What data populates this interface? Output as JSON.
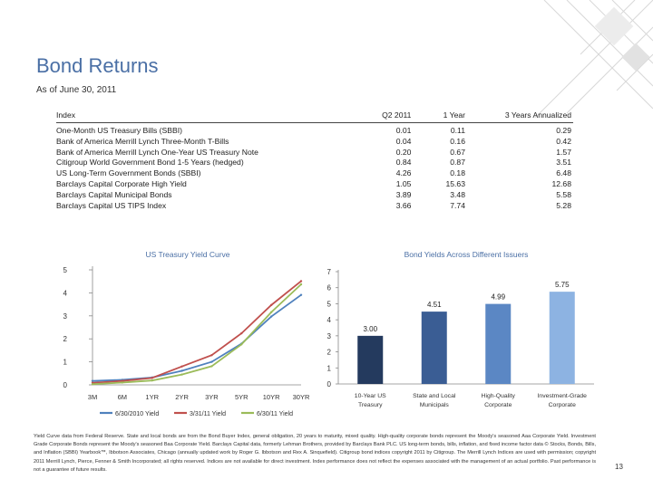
{
  "header": {
    "title": "Bond Returns",
    "subtitle": "As of June 30, 2011"
  },
  "returns_table": {
    "columns": [
      "Index",
      "Q2 2011",
      "1 Year",
      "3 Years Annualized"
    ],
    "rows": [
      {
        "index": "One-Month US Treasury Bills (SBBI)",
        "q2": "0.01",
        "y1": "0.11",
        "y3": "0.29"
      },
      {
        "index": "Bank of America Merrill Lynch Three-Month T-Bills",
        "q2": "0.04",
        "y1": "0.16",
        "y3": "0.42"
      },
      {
        "index": "Bank of America Merrill Lynch One-Year US Treasury Note",
        "q2": "0.20",
        "y1": "0.67",
        "y3": "1.57"
      },
      {
        "index": "Citigroup World Government Bond 1-5 Years (hedged)",
        "q2": "0.84",
        "y1": "0.87",
        "y3": "3.51"
      },
      {
        "index": "US Long-Term Government Bonds (SBBI)",
        "q2": "4.26",
        "y1": "0.18",
        "y3": "6.48"
      },
      {
        "index": "Barclays Capital Corporate High Yield",
        "q2": "1.05",
        "y1": "15.63",
        "y3": "12.68"
      },
      {
        "index": "Barclays Capital Municipal Bonds",
        "q2": "3.89",
        "y1": "3.48",
        "y3": "5.58"
      },
      {
        "index": "Barclays Capital US TIPS Index",
        "q2": "3.66",
        "y1": "7.74",
        "y3": "5.28"
      }
    ]
  },
  "chart_data": [
    {
      "type": "line",
      "title": "US Treasury Yield Curve",
      "categories": [
        "3M",
        "6M",
        "1YR",
        "2YR",
        "3YR",
        "5YR",
        "10YR",
        "30YR"
      ],
      "ylim": [
        0,
        5
      ],
      "yticks": [
        "0",
        "1",
        "2",
        "3",
        "4",
        "5"
      ],
      "series": [
        {
          "name": "6/30/2010 Yield",
          "color": "#4f81bd",
          "values": [
            0.17,
            0.22,
            0.32,
            0.61,
            1.0,
            1.79,
            2.97,
            3.91
          ]
        },
        {
          "name": "3/31/11 Yield",
          "color": "#c0504d",
          "values": [
            0.09,
            0.17,
            0.3,
            0.8,
            1.29,
            2.24,
            3.47,
            4.51
          ]
        },
        {
          "name": "6/30/11 Yield",
          "color": "#9bbb59",
          "values": [
            0.03,
            0.1,
            0.19,
            0.45,
            0.81,
            1.76,
            3.16,
            4.37
          ]
        }
      ]
    },
    {
      "type": "bar",
      "title": "Bond Yields Across Different Issuers",
      "categories": [
        "10-Year US Treasury",
        "State and Local Municipals",
        "High-Quality Corporate",
        "Investment-Grade Corporate"
      ],
      "category_lines": [
        [
          "10-Year US",
          "Treasury"
        ],
        [
          "State and Local",
          "Municipals"
        ],
        [
          "High-Quality",
          "Corporate"
        ],
        [
          "Investment-Grade",
          "Corporate"
        ]
      ],
      "values": [
        3.0,
        4.51,
        4.99,
        5.75
      ],
      "value_labels": [
        "3.00",
        "4.51",
        "4.99",
        "5.75"
      ],
      "colors": [
        "#243a5e",
        "#3a5d94",
        "#5b87c4",
        "#8db3e2"
      ],
      "ylim": [
        0,
        7
      ],
      "yticks": [
        "0",
        "1",
        "2",
        "3",
        "4",
        "5",
        "6",
        "7"
      ]
    }
  ],
  "footnote": "Yield Curve data from Federal Reserve. State and local bonds are from the Bond Buyer Index, general obligation, 20 years to maturity, mixed quality. High-quality corporate bonds represent the Moody's seasoned Aaa Corporate Yield. Investment Grade Corporate Bonds represent the Moody's seasoned Baa Corporate Yield. Barclays Capital data, formerly Lehman Brothers, provided by Barclays Bank PLC. US long-term bonds, bills, inflation, and fixed income factor data © Stocks, Bonds, Bills, and Inflation (SBBI) Yearbook™, Ibbotson Associates, Chicago (annually updated work by Roger G. Ibbotson and Rex A. Sinquefield). Citigroup bond indices copyright 2011 by Citigroup. The Merrill Lynch Indices are used with permission; copyright 2011 Merrill Lynch, Pierce, Fenner & Smith Incorporated; all rights reserved. Indices are not available for direct investment. Index performance does not reflect the expenses associated with the management of an actual portfolio. Past performance is not a guarantee of future results.",
  "page_number": "13"
}
